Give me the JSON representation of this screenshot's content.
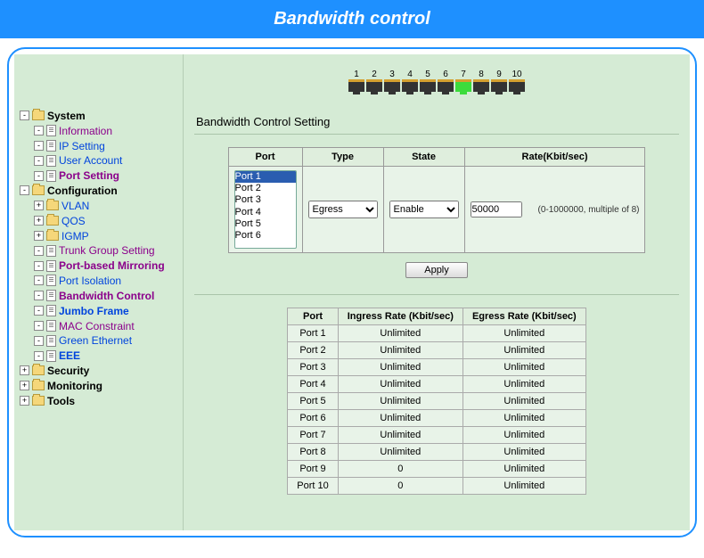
{
  "title": "Bandwidth control",
  "sidebar": [
    {
      "exp": "-",
      "icon": "fld",
      "label": "System",
      "cls": "bold",
      "i": 0
    },
    {
      "exp": "-",
      "icon": "doc",
      "label": "Information",
      "cls": "purple",
      "i": 1
    },
    {
      "exp": "-",
      "icon": "doc",
      "label": "IP Setting",
      "cls": "blue",
      "i": 1
    },
    {
      "exp": "-",
      "icon": "doc",
      "label": "User Account",
      "cls": "blue",
      "i": 1
    },
    {
      "exp": "-",
      "icon": "doc",
      "label": "Port Setting",
      "cls": "purple bold",
      "i": 1
    },
    {
      "exp": "-",
      "icon": "fld",
      "label": "Configuration",
      "cls": "bold",
      "i": 0
    },
    {
      "exp": "+",
      "icon": "fld",
      "label": "VLAN",
      "cls": "blue",
      "i": 1
    },
    {
      "exp": "+",
      "icon": "fld",
      "label": "QOS",
      "cls": "blue",
      "i": 1
    },
    {
      "exp": "+",
      "icon": "fld",
      "label": "IGMP",
      "cls": "blue",
      "i": 1
    },
    {
      "exp": "-",
      "icon": "doc",
      "label": "Trunk Group Setting",
      "cls": "purple",
      "i": 1
    },
    {
      "exp": "-",
      "icon": "doc",
      "label": "Port-based Mirroring",
      "cls": "purple bold",
      "i": 1
    },
    {
      "exp": "-",
      "icon": "doc",
      "label": "Port Isolation",
      "cls": "blue",
      "i": 1
    },
    {
      "exp": "-",
      "icon": "doc",
      "label": "Bandwidth Control",
      "cls": "purple bold",
      "i": 1
    },
    {
      "exp": "-",
      "icon": "doc",
      "label": "Jumbo Frame",
      "cls": "blue bold",
      "i": 1
    },
    {
      "exp": "-",
      "icon": "doc",
      "label": "MAC Constraint",
      "cls": "purple",
      "i": 1
    },
    {
      "exp": "-",
      "icon": "doc",
      "label": "Green Ethernet",
      "cls": "blue",
      "i": 1
    },
    {
      "exp": "-",
      "icon": "doc",
      "label": "EEE",
      "cls": "blue bold",
      "i": 1
    },
    {
      "exp": "+",
      "icon": "fld",
      "label": "Security",
      "cls": "bold",
      "i": 0
    },
    {
      "exp": "+",
      "icon": "fld",
      "label": "Monitoring",
      "cls": "bold",
      "i": 0
    },
    {
      "exp": "+",
      "icon": "fld",
      "label": "Tools",
      "cls": "bold",
      "i": 0
    }
  ],
  "ports": {
    "count": 10,
    "active": 7
  },
  "section": "Bandwidth Control Setting",
  "cfg": {
    "headers": {
      "port": "Port",
      "type": "Type",
      "state": "State",
      "rate": "Rate(Kbit/sec)"
    },
    "portOptions": [
      "Port 1",
      "Port 2",
      "Port 3",
      "Port 4",
      "Port 5",
      "Port 6"
    ],
    "selectedPort": "Port 1",
    "type": "Egress",
    "state": "Enable",
    "rate": "50000",
    "hint": "(0-1000000, multiple of 8)",
    "apply": "Apply"
  },
  "status": {
    "headers": {
      "port": "Port",
      "ing": "Ingress Rate (Kbit/sec)",
      "eg": "Egress Rate (Kbit/sec)"
    },
    "rows": [
      {
        "p": "Port 1",
        "i": "Unlimited",
        "e": "Unlimited"
      },
      {
        "p": "Port 2",
        "i": "Unlimited",
        "e": "Unlimited"
      },
      {
        "p": "Port 3",
        "i": "Unlimited",
        "e": "Unlimited"
      },
      {
        "p": "Port 4",
        "i": "Unlimited",
        "e": "Unlimited"
      },
      {
        "p": "Port 5",
        "i": "Unlimited",
        "e": "Unlimited"
      },
      {
        "p": "Port 6",
        "i": "Unlimited",
        "e": "Unlimited"
      },
      {
        "p": "Port 7",
        "i": "Unlimited",
        "e": "Unlimited"
      },
      {
        "p": "Port 8",
        "i": "Unlimited",
        "e": "Unlimited"
      },
      {
        "p": "Port 9",
        "i": "0",
        "e": "Unlimited"
      },
      {
        "p": "Port 10",
        "i": "0",
        "e": "Unlimited"
      }
    ]
  }
}
